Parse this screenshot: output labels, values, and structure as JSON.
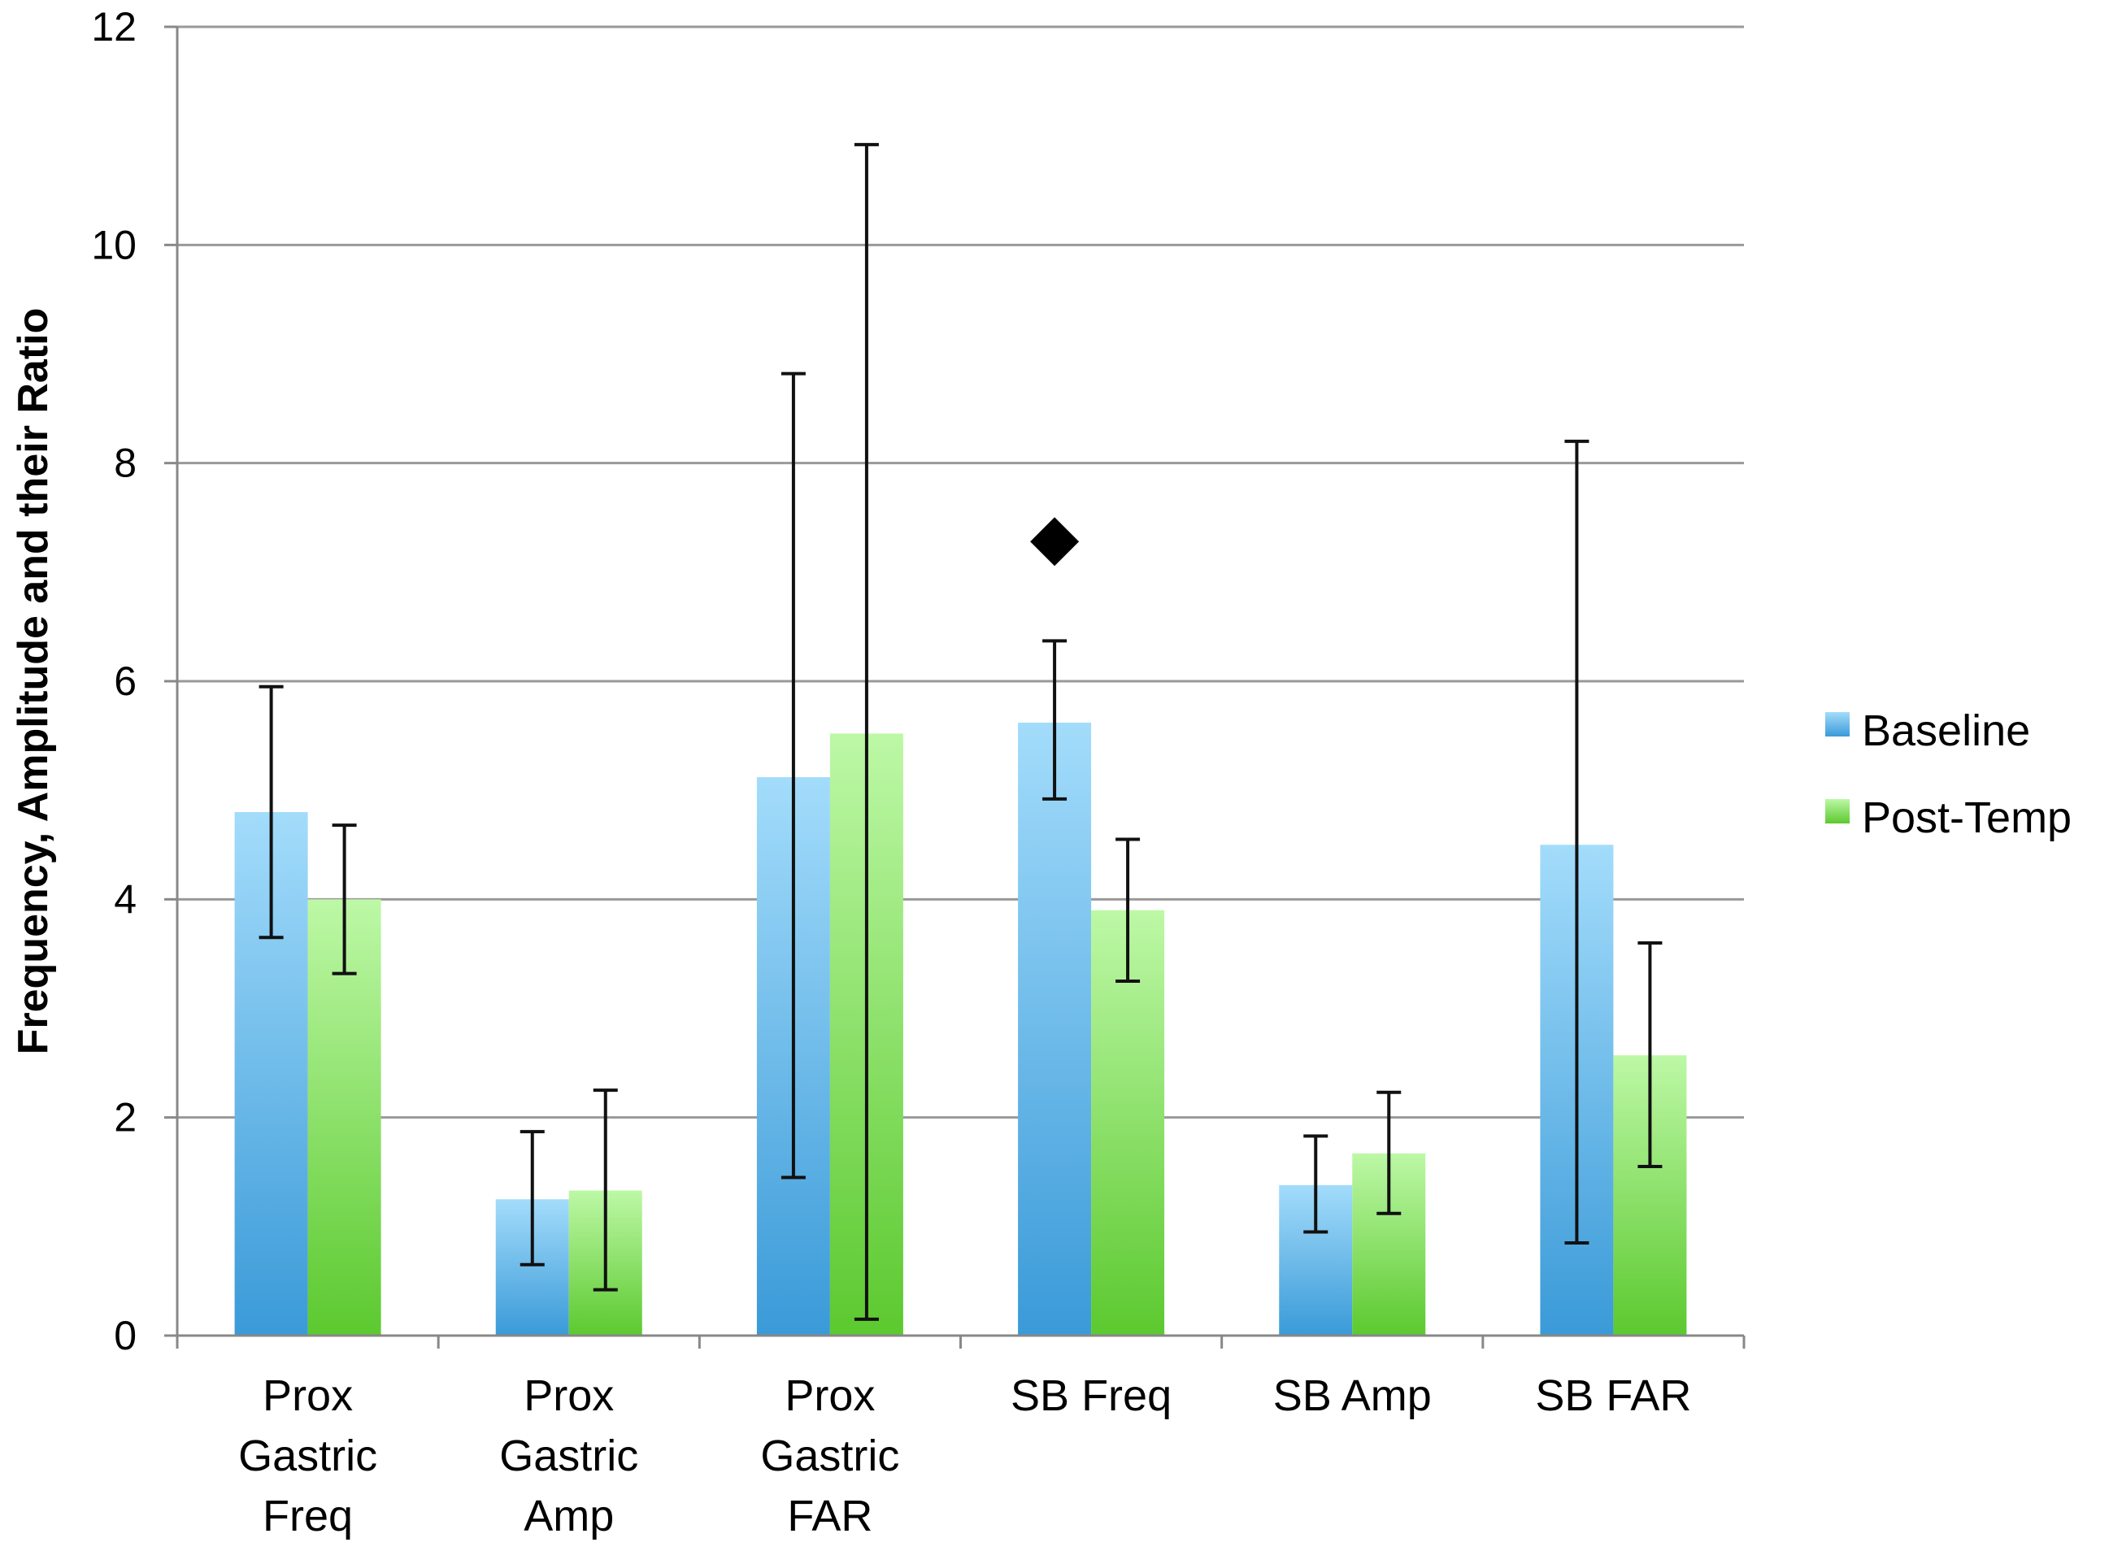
{
  "chart_data": {
    "type": "bar",
    "title": "",
    "xlabel": "",
    "ylabel": "Frequency, Amplitude and their Ratio",
    "ylim": [
      0,
      12
    ],
    "yticks": [
      0,
      2,
      4,
      6,
      8,
      10,
      12
    ],
    "grid": true,
    "legend_position": "right",
    "categories": [
      [
        "Prox",
        "Gastric",
        "Freq"
      ],
      [
        "Prox",
        "Gastric",
        "Amp"
      ],
      [
        "Prox",
        "Gastric",
        "FAR"
      ],
      [
        "SB Freq"
      ],
      [
        "SB Amp"
      ],
      [
        "SB FAR"
      ]
    ],
    "series": [
      {
        "name": "Baseline",
        "color_top": "#9fd9fb",
        "color_bottom": "#3a9ad8",
        "values": [
          4.8,
          1.25,
          5.12,
          5.62,
          1.38,
          4.5
        ],
        "error_low": [
          3.65,
          0.65,
          1.45,
          4.92,
          0.95,
          0.85
        ],
        "error_high": [
          5.95,
          1.87,
          8.82,
          6.37,
          1.83,
          8.2
        ]
      },
      {
        "name": "Post-Temp",
        "color_top": "#b8f7a0",
        "color_bottom": "#5cc92f",
        "values": [
          4.0,
          1.33,
          5.52,
          3.9,
          1.67,
          2.57
        ],
        "error_low": [
          3.32,
          0.42,
          0.15,
          3.25,
          1.12,
          1.55
        ],
        "error_high": [
          4.68,
          2.25,
          10.92,
          4.55,
          2.23,
          3.6
        ]
      }
    ],
    "annotations": [
      {
        "type": "diamond-marker",
        "category_index": 3,
        "y": 7.28
      }
    ]
  }
}
